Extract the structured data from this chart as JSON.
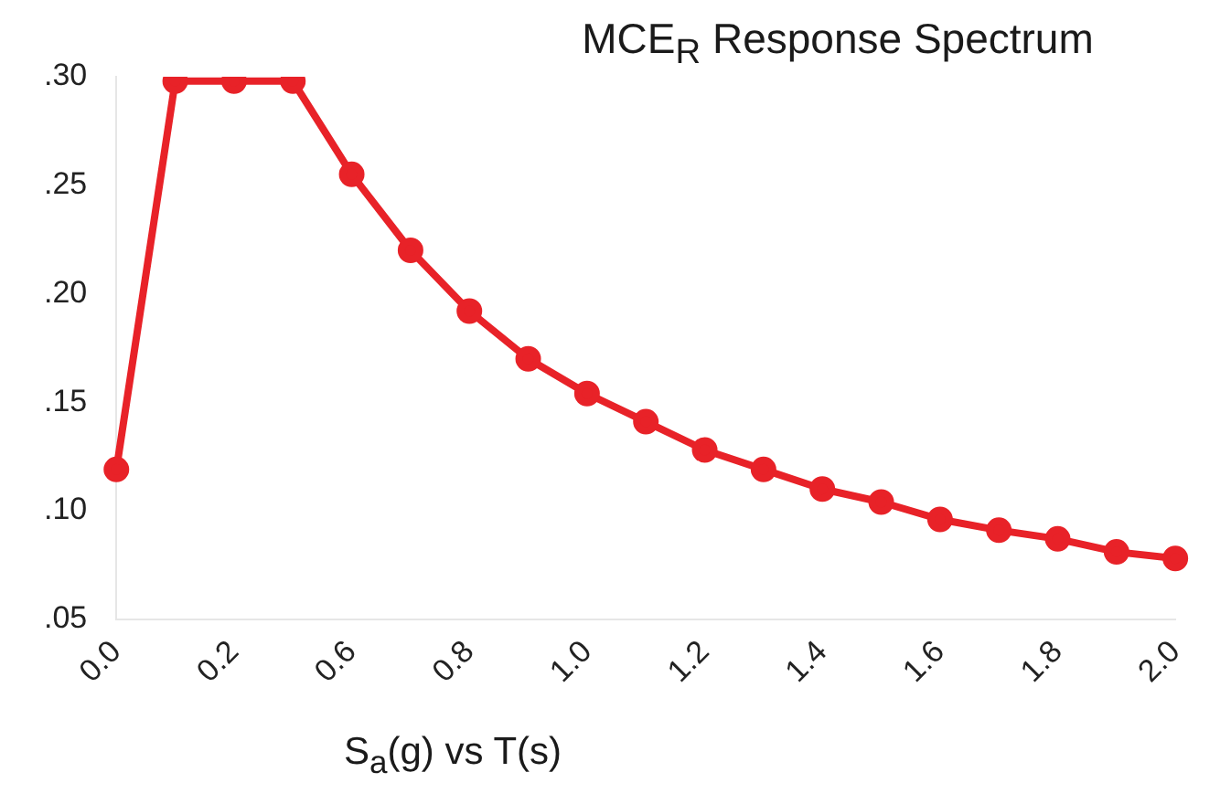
{
  "chart_data": {
    "type": "line",
    "title": "MCE$_{R}$ Response Spectrum",
    "xlabel": "S$_{a}$(g) vs T(s)",
    "categories": [
      "0.0",
      null,
      "0.2",
      null,
      "0.6",
      null,
      "0.8",
      null,
      "1.0",
      null,
      "1.2",
      null,
      "1.4",
      null,
      "1.6",
      null,
      "1.8",
      null,
      "2.0"
    ],
    "series": [
      {
        "color": "#e82228",
        "values": [
          0.119,
          0.298,
          0.298,
          0.298,
          0.255,
          0.22,
          0.192,
          0.17,
          0.154,
          0.141,
          0.128,
          0.119,
          0.11,
          0.104,
          0.096,
          0.091,
          0.087,
          0.081,
          0.078
        ]
      }
    ],
    "ylim": [
      0.05,
      0.3
    ],
    "yticks": [
      {
        "value": 0.05,
        "label": ".05"
      },
      {
        "value": 0.1,
        "label": ".10"
      },
      {
        "value": 0.15,
        "label": ".15"
      },
      {
        "value": 0.2,
        "label": ".20"
      },
      {
        "value": 0.25,
        "label": ".25"
      },
      {
        "value": 0.3,
        "label": ".30"
      }
    ],
    "grid": false,
    "legend": false,
    "marker": "circle",
    "line_style": "solid"
  }
}
